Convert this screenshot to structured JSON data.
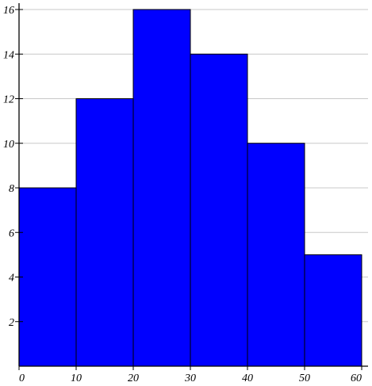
{
  "chart_data": {
    "type": "bar",
    "bins": [
      {
        "start": 0,
        "end": 10,
        "value": 8
      },
      {
        "start": 10,
        "end": 20,
        "value": 12
      },
      {
        "start": 20,
        "end": 30,
        "value": 16
      },
      {
        "start": 30,
        "end": 40,
        "value": 14
      },
      {
        "start": 40,
        "end": 50,
        "value": 10
      },
      {
        "start": 50,
        "end": 60,
        "value": 5
      }
    ],
    "xlim": [
      0,
      60
    ],
    "ylim": [
      0,
      16
    ],
    "x_ticks": [
      0,
      10,
      20,
      30,
      40,
      50,
      60
    ],
    "y_ticks": [
      2,
      4,
      6,
      8,
      10,
      12,
      14,
      16
    ],
    "x_tick_labels": [
      "0",
      "10",
      "20",
      "30",
      "40",
      "50",
      "60"
    ],
    "y_tick_labels": [
      "2",
      "4",
      "6",
      "8",
      "10",
      "12",
      "14",
      "16"
    ],
    "title": "",
    "xlabel": "",
    "ylabel": "",
    "grid": "horizontal",
    "colors": {
      "bar": "#0000ff",
      "bar_edge": "#000000",
      "grid": "#c8c8c8",
      "axis": "#000000"
    }
  }
}
